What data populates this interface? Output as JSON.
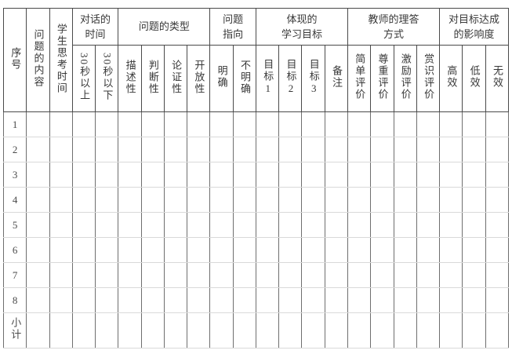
{
  "table": {
    "full_columns": [
      {
        "key": "serial-number",
        "label": "序号"
      },
      {
        "key": "question-content",
        "label": "问题的内容"
      },
      {
        "key": "student-think-time",
        "label": "学生思考时间"
      }
    ],
    "groups": [
      {
        "key": "dialogue-time",
        "label": "对话的\n时间",
        "children": [
          {
            "key": "over-30s",
            "label": "30秒以上"
          },
          {
            "key": "under-30s",
            "label": "30秒以下"
          }
        ]
      },
      {
        "key": "question-type",
        "label": "问题的类型",
        "children": [
          {
            "key": "descriptive",
            "label": "描述性"
          },
          {
            "key": "judgmental",
            "label": "判断性"
          },
          {
            "key": "argumentative",
            "label": "论证性"
          },
          {
            "key": "open-ended",
            "label": "开放性"
          }
        ]
      },
      {
        "key": "question-direction",
        "label": "问题\n指向",
        "children": [
          {
            "key": "clear",
            "label": "明确"
          },
          {
            "key": "unclear",
            "label": "不明确"
          }
        ]
      },
      {
        "key": "learning-goals",
        "label": "体现的\n学习目标",
        "children": [
          {
            "key": "goal-1",
            "label": "目标1"
          },
          {
            "key": "goal-2",
            "label": "目标2"
          },
          {
            "key": "goal-3",
            "label": "目标3"
          },
          {
            "key": "remark",
            "label": "备注"
          }
        ]
      },
      {
        "key": "teacher-response-style",
        "label": "教师的理答\n方式",
        "children": [
          {
            "key": "simple-evaluation",
            "label": "简单评价"
          },
          {
            "key": "respectful-evaluation",
            "label": "尊重评价"
          },
          {
            "key": "encouraging-evaluation",
            "label": "激励评价"
          },
          {
            "key": "appreciative-evaluation",
            "label": "赏识评价"
          }
        ]
      },
      {
        "key": "goal-achievement-impact",
        "label": "对目标达成\n的影响度",
        "children": [
          {
            "key": "high-effect",
            "label": "高效"
          },
          {
            "key": "low-effect",
            "label": "低效"
          },
          {
            "key": "no-effect",
            "label": "无效"
          }
        ]
      }
    ],
    "rows": [
      {
        "key": "row-1",
        "label": "1"
      },
      {
        "key": "row-2",
        "label": "2"
      },
      {
        "key": "row-3",
        "label": "3"
      },
      {
        "key": "row-4",
        "label": "4"
      },
      {
        "key": "row-5",
        "label": "5"
      },
      {
        "key": "row-6",
        "label": "6"
      },
      {
        "key": "row-7",
        "label": "7"
      },
      {
        "key": "row-8",
        "label": "8"
      },
      {
        "key": "row-subtotal",
        "label": "小计"
      }
    ]
  }
}
